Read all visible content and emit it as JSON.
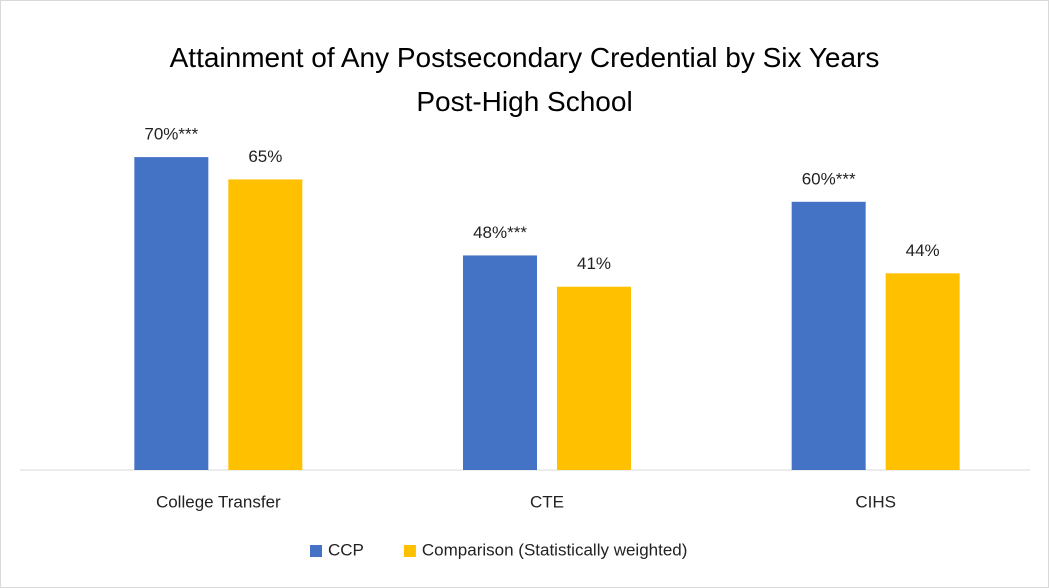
{
  "chart_data": {
    "type": "bar",
    "title": "Attainment of Any Postsecondary Credential by Six Years Post-High School",
    "categories": [
      "College Transfer",
      "CTE",
      "CIHS"
    ],
    "series": [
      {
        "name": "CCP",
        "color": "#4472c4",
        "values": [
          70,
          48,
          60
        ],
        "value_labels": [
          "70%***",
          "48%***",
          "60%***"
        ]
      },
      {
        "name": "Comparison (Statistically weighted)",
        "color": "#ffc000",
        "values": [
          65,
          41,
          44
        ],
        "value_labels": [
          "65%",
          "41%",
          "44%"
        ]
      }
    ],
    "legend": "bottom"
  }
}
